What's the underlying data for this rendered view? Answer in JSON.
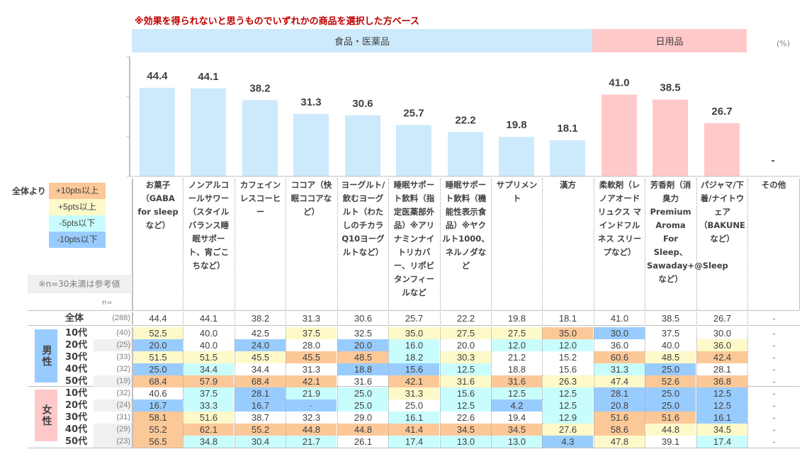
{
  "subtitle": "※効果を得られないと思うものでいずれかの商品を選択した方ベース",
  "bands": {
    "food": "食品・医薬品",
    "daily": "日用品"
  },
  "unit": "(%)",
  "legend": {
    "title": "全体より",
    "items": [
      {
        "label": "+10pts以上",
        "color": "#fcc898"
      },
      {
        "label": "+5pts以上",
        "color": "#fef9c9"
      },
      {
        "label": "-5pts以下",
        "color": "#c9fdfd"
      },
      {
        "label": "-10pts以下",
        "color": "#99ccfe"
      }
    ]
  },
  "ref_note": "※n=30未満は参考値",
  "n_label": "n=",
  "categories": [
    "お菓子（GABA for sleepなど）",
    "ノンアルコールサワー（スタイルバランス睡眠サポート、宵ごこちなど）",
    "カフェインレスコーヒー",
    "ココア（快眠ココアなど）",
    "ヨーグルト/飲むヨーグルト（わたしのチカラQ10ヨーグルトなど）",
    "睡眠サポート飲料（指定医薬部外品）※アリナミンナイトリカバー、リポビタンフィールなど",
    "睡眠サポート飲料（機能性表示食品）※ヤクルト1000、ネルノダなど",
    "サプリメント",
    "漢方",
    "柔軟剤（レノアオードリュクス マインドフルネス スリープなど）",
    "芳香剤（消臭力 Premium Aroma For Sleep、Sawaday+@Sleepなど）",
    "パジャマ/下着/ナイトウェア（BAKUNEなど）",
    "その他"
  ],
  "rows": [
    {
      "group": "",
      "label": "全体",
      "n": "(288)",
      "n_ref": false,
      "values": [
        "44.4",
        "44.1",
        "38.2",
        "31.3",
        "30.6",
        "25.7",
        "22.2",
        "19.8",
        "18.1",
        "41.0",
        "38.5",
        "26.7",
        "-"
      ],
      "colors": [
        "",
        "",
        "",
        "",
        "",
        "",
        "",
        "",
        "",
        "",
        "",
        "",
        ""
      ]
    },
    {
      "group": "男性",
      "label": "10代",
      "n": "(40)",
      "n_ref": false,
      "values": [
        "52.5",
        "40.0",
        "42.5",
        "37.5",
        "32.5",
        "35.0",
        "27.5",
        "27.5",
        "35.0",
        "30.0",
        "37.5",
        "30.0",
        "-"
      ],
      "colors": [
        "Y",
        "",
        "",
        "Y",
        "",
        "Y",
        "Y",
        "Y",
        "O",
        "B",
        "",
        "",
        ""
      ]
    },
    {
      "group": "男性",
      "label": "20代",
      "n": "(25)",
      "n_ref": true,
      "values": [
        "20.0",
        "40.0",
        "24.0",
        "28.0",
        "20.0",
        "16.0",
        "20.0",
        "12.0",
        "12.0",
        "36.0",
        "40.0",
        "36.0",
        "-"
      ],
      "colors": [
        "B",
        "",
        "B",
        "",
        "B",
        "C",
        "",
        "C",
        "C",
        "",
        "",
        "Y",
        ""
      ]
    },
    {
      "group": "男性",
      "label": "30代",
      "n": "(33)",
      "n_ref": false,
      "values": [
        "51.5",
        "51.5",
        "45.5",
        "45.5",
        "48.5",
        "18.2",
        "30.3",
        "21.2",
        "15.2",
        "60.6",
        "48.5",
        "42.4",
        "-"
      ],
      "colors": [
        "Y",
        "Y",
        "Y",
        "O",
        "O",
        "C",
        "Y",
        "",
        "",
        "O",
        "Y",
        "O",
        ""
      ]
    },
    {
      "group": "男性",
      "label": "40代",
      "n": "(32)",
      "n_ref": false,
      "values": [
        "25.0",
        "34.4",
        "34.4",
        "31.3",
        "18.8",
        "15.6",
        "12.5",
        "18.8",
        "15.6",
        "31.3",
        "25.0",
        "28.1",
        "-"
      ],
      "colors": [
        "B",
        "C",
        "",
        "",
        "B",
        "B",
        "C",
        "",
        "",
        "C",
        "B",
        "",
        ""
      ]
    },
    {
      "group": "男性",
      "label": "50代",
      "n": "(19)",
      "n_ref": true,
      "values": [
        "68.4",
        "57.9",
        "68.4",
        "42.1",
        "31.6",
        "42.1",
        "31.6",
        "31.6",
        "26.3",
        "47.4",
        "52.6",
        "36.8",
        "-"
      ],
      "colors": [
        "O",
        "O",
        "O",
        "O",
        "",
        "O",
        "Y",
        "O",
        "Y",
        "Y",
        "O",
        "O",
        ""
      ]
    },
    {
      "group": "女性",
      "label": "10代",
      "n": "(32)",
      "n_ref": false,
      "values": [
        "40.6",
        "37.5",
        "28.1",
        "21.9",
        "25.0",
        "31.3",
        "15.6",
        "12.5",
        "12.5",
        "28.1",
        "25.0",
        "12.5",
        "-"
      ],
      "colors": [
        "",
        "C",
        "B",
        "C",
        "C",
        "Y",
        "C",
        "C",
        "C",
        "B",
        "B",
        "B",
        ""
      ]
    },
    {
      "group": "女性",
      "label": "20代",
      "n": "(24)",
      "n_ref": true,
      "values": [
        "16.7",
        "33.3",
        "16.7",
        "-",
        "25.0",
        "25.0",
        "12.5",
        "4.2",
        "12.5",
        "20.8",
        "25.0",
        "12.5",
        "-"
      ],
      "colors": [
        "B",
        "C",
        "B",
        "B",
        "C",
        "",
        "C",
        "B",
        "C",
        "B",
        "B",
        "B",
        ""
      ]
    },
    {
      "group": "女性",
      "label": "30代",
      "n": "(31)",
      "n_ref": false,
      "values": [
        "58.1",
        "51.6",
        "38.7",
        "32.3",
        "29.0",
        "16.1",
        "22.6",
        "19.4",
        "12.9",
        "51.6",
        "51.6",
        "16.1",
        "-"
      ],
      "colors": [
        "O",
        "Y",
        "",
        "",
        "",
        "C",
        "",
        "",
        "C",
        "O",
        "O",
        "B",
        ""
      ]
    },
    {
      "group": "女性",
      "label": "40代",
      "n": "(29)",
      "n_ref": true,
      "values": [
        "55.2",
        "62.1",
        "55.2",
        "44.8",
        "44.8",
        "41.4",
        "34.5",
        "34.5",
        "27.6",
        "58.6",
        "44.8",
        "34.5",
        "-"
      ],
      "colors": [
        "O",
        "O",
        "O",
        "O",
        "O",
        "O",
        "O",
        "O",
        "Y",
        "O",
        "Y",
        "Y",
        ""
      ]
    },
    {
      "group": "女性",
      "label": "50代",
      "n": "(23)",
      "n_ref": true,
      "values": [
        "56.5",
        "34.8",
        "30.4",
        "21.7",
        "26.1",
        "17.4",
        "13.0",
        "13.0",
        "4.3",
        "47.8",
        "39.1",
        "17.4",
        "-"
      ],
      "colors": [
        "O",
        "C",
        "C",
        "C",
        "",
        "C",
        "C",
        "C",
        "B",
        "Y",
        "",
        "C",
        ""
      ]
    }
  ],
  "gender_labels": {
    "male": "男性",
    "female": "女性"
  },
  "chart_data": {
    "type": "bar",
    "title": "※効果を得られないと思うものでいずれかの商品を選択した方ベース",
    "xlabel": "",
    "ylabel": "(%)",
    "ylim": [
      0,
      60
    ],
    "grid": false,
    "categories": [
      "お菓子",
      "ノンアルコールサワー",
      "カフェインレスコーヒー",
      "ココア",
      "ヨーグルト/飲むヨーグルト",
      "睡眠サポート飲料（指定医薬部外品）",
      "睡眠サポート飲料（機能性表示食品）",
      "サプリメント",
      "漢方",
      "柔軟剤",
      "芳香剤",
      "パジャマ/下着/ナイトウェア",
      "その他"
    ],
    "values": [
      44.4,
      44.1,
      38.2,
      31.3,
      30.6,
      25.7,
      22.2,
      19.8,
      18.1,
      41.0,
      38.5,
      26.7,
      null
    ],
    "value_labels": [
      "44.4",
      "44.1",
      "38.2",
      "31.3",
      "30.6",
      "25.7",
      "22.2",
      "19.8",
      "18.1",
      "41.0",
      "38.5",
      "26.7",
      "-"
    ],
    "groups": [
      "食品・医薬品",
      "食品・医薬品",
      "食品・医薬品",
      "食品・医薬品",
      "食品・医薬品",
      "食品・医薬品",
      "食品・医薬品",
      "食品・医薬品",
      "食品・医薬品",
      "日用品",
      "日用品",
      "日用品",
      "日用品"
    ],
    "group_colors": {
      "食品・医薬品": "#cdeafc",
      "日用品": "#ffc9ca"
    }
  }
}
